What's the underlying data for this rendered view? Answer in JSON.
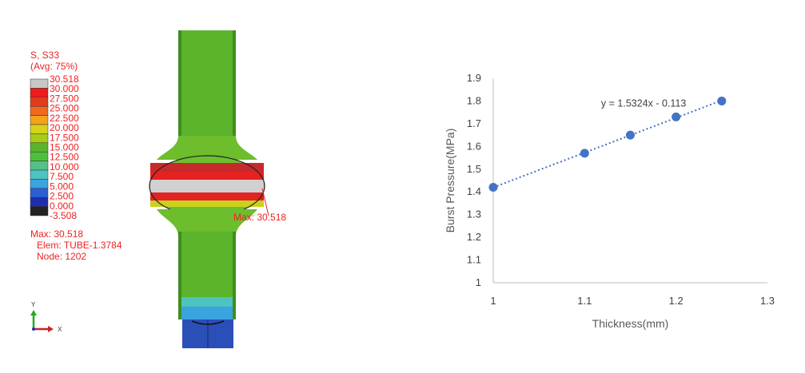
{
  "fea": {
    "legend_title_1": "S, S33",
    "legend_title_2": "(Avg: 75%)",
    "legend_values": [
      "30.518",
      "30.000",
      "27.500",
      "25.000",
      "22.500",
      "20.000",
      "17.500",
      "15.000",
      "12.500",
      "10.000",
      "7.500",
      "5.000",
      "2.500",
      "0.000",
      "-3.508"
    ],
    "legend_colors": [
      "#c8c8c8",
      "#ee1c1c",
      "#e23b1e",
      "#ef6a1e",
      "#f3a21b",
      "#d8d21a",
      "#a8cc1a",
      "#5bb42c",
      "#4fbf3b",
      "#54c08a",
      "#4ec3c0",
      "#3ba4e0",
      "#2b5fd3",
      "#1d2fb0",
      "#222222"
    ],
    "max_line": "Max: 30.518",
    "elem_line": "Elem: TUBE-1.3784",
    "node_line": "Node: 1202",
    "max_callout": "Max: 30.518",
    "axis_y": "Y",
    "axis_x": "X"
  },
  "chart_data": {
    "type": "scatter",
    "xlabel": "Thickness(mm)",
    "ylabel": "Burst Pressure(MPa)",
    "xlim": [
      1,
      1.3
    ],
    "ylim": [
      1,
      1.9
    ],
    "xticks": [
      "1",
      "1.1",
      "1.2",
      "1.3"
    ],
    "yticks": [
      "1",
      "1.1",
      "1.2",
      "1.3",
      "1.4",
      "1.5",
      "1.6",
      "1.7",
      "1.8",
      "1.9"
    ],
    "x": [
      1.0,
      1.1,
      1.15,
      1.2,
      1.25
    ],
    "y": [
      1.42,
      1.57,
      1.65,
      1.73,
      1.8
    ],
    "trendline": {
      "slope": 1.5324,
      "intercept": -0.113,
      "label": "y = 1.5324x - 0.113"
    },
    "grid": false,
    "marker_color": "#4472c4"
  }
}
